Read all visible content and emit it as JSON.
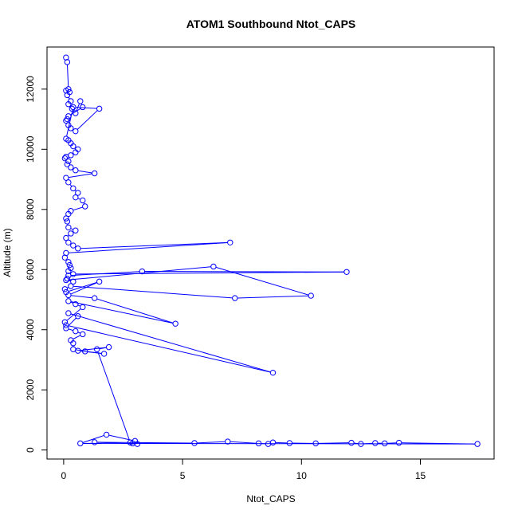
{
  "chart_data": {
    "type": "line",
    "title": "ATOM1 Southbound Ntot_CAPS",
    "xlabel": "Ntot_CAPS",
    "ylabel": "Altitude (m)",
    "xlim": [
      -0.7,
      18.1
    ],
    "ylim": [
      -300,
      13400
    ],
    "x_ticks": [
      0,
      5,
      10,
      15
    ],
    "x_tick_labels": [
      "0",
      "5",
      "10",
      "15"
    ],
    "y_ticks": [
      0,
      2000,
      4000,
      6000,
      8000,
      10000,
      12000
    ],
    "y_tick_labels": [
      "0",
      "2000",
      "4000",
      "6000",
      "8000",
      "10000",
      "12000"
    ],
    "grid": false,
    "legend": "none",
    "series": [
      {
        "name": "Ntot_CAPS",
        "color": "#0000ff",
        "marker": "open-circle",
        "x": [
          0.1,
          0.15,
          0.2,
          0.25,
          0.1,
          0.15,
          0.3,
          0.2,
          0.35,
          0.5,
          0.7,
          0.8,
          0.2,
          0.15,
          0.1,
          0.2,
          0.3,
          0.5,
          1.5,
          0.4,
          0.1,
          0.2,
          0.3,
          0.4,
          0.6,
          0.5,
          0.3,
          0.1,
          0.05,
          0.2,
          0.15,
          0.3,
          0.5,
          1.3,
          0.1,
          0.2,
          0.4,
          0.6,
          0.5,
          0.8,
          0.9,
          0.3,
          0.2,
          0.1,
          0.15,
          0.2,
          0.5,
          0.3,
          0.1,
          0.2,
          0.4,
          0.6,
          7.0,
          0.1,
          0.05,
          0.2,
          0.25,
          0.3,
          0.2,
          0.4,
          11.9,
          3.3,
          0.2,
          0.15,
          0.4,
          0.1,
          6.3,
          10.4,
          7.2,
          0.3,
          0.05,
          0.1,
          1.5,
          0.2,
          1.3,
          4.7,
          0.2,
          0.5,
          0.8,
          0.05,
          0.1,
          8.8,
          0.2,
          0.6,
          0.1,
          0.5,
          0.8,
          0.3,
          0.4,
          0.4,
          0.9,
          1.7,
          0.6,
          1.9,
          1.4,
          2.8,
          2.9,
          3.1,
          1.3,
          5.5,
          6.9,
          8.2,
          8.6,
          8.8,
          9.5,
          10.6,
          12.1,
          12.5,
          13.1,
          13.5,
          14.1,
          17.4,
          0.7,
          1.8,
          3.0
        ]
      }
    ],
    "y": [
      13050,
      12900,
      12000,
      11900,
      11950,
      11800,
      11600,
      11500,
      11350,
      11200,
      11600,
      11400,
      11100,
      11000,
      10950,
      10800,
      10700,
      10600,
      11350,
      11400,
      10350,
      10300,
      10200,
      10100,
      10000,
      9900,
      9800,
      9750,
      9700,
      9600,
      9500,
      9400,
      9300,
      9200,
      9050,
      8900,
      8700,
      8550,
      8400,
      8300,
      8100,
      7950,
      7850,
      7700,
      7600,
      7400,
      7300,
      7200,
      7050,
      6900,
      6800,
      6700,
      6900,
      6550,
      6400,
      6250,
      6150,
      6050,
      5950,
      5850,
      5920,
      5940,
      5800,
      5700,
      5600,
      5650,
      6100,
      5130,
      5050,
      5450,
      5350,
      5250,
      5600,
      5150,
      5050,
      4200,
      4950,
      4850,
      4750,
      4250,
      4150,
      2570,
      4550,
      4450,
      4050,
      3950,
      3850,
      3650,
      3550,
      3350,
      3280,
      3200,
      3300,
      3420,
      3350,
      250,
      220,
      200,
      260,
      230,
      280,
      220,
      200,
      250,
      230,
      220,
      240,
      200,
      230,
      220,
      240,
      200,
      220,
      510,
      300
    ]
  }
}
